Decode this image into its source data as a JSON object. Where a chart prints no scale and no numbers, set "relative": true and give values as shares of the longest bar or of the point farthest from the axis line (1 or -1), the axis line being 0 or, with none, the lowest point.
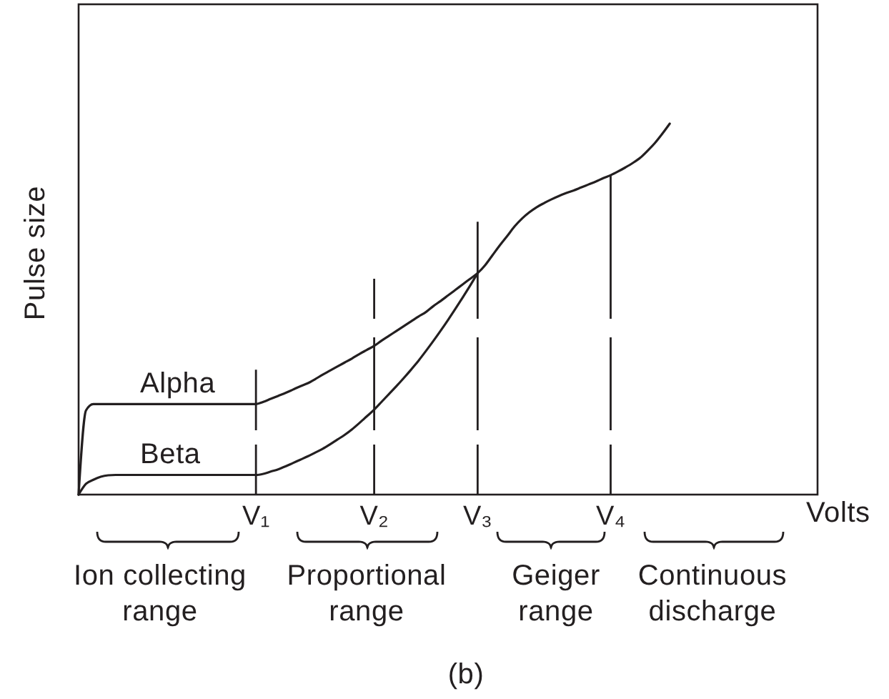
{
  "chart_data": {
    "type": "line",
    "xlabel": "Volts",
    "ylabel": "Pulse size",
    "relative": true,
    "categories": [
      null,
      null,
      null,
      null,
      null,
      null,
      null,
      null,
      null,
      null,
      null,
      null,
      null,
      null,
      null,
      null,
      null,
      null,
      null,
      null,
      null,
      null,
      null,
      null,
      "V₁",
      null,
      null,
      null,
      null,
      null,
      null,
      null,
      null,
      null,
      null,
      null,
      null,
      null,
      null,
      null,
      "V₂",
      null,
      null,
      null,
      null,
      null,
      null,
      null,
      null,
      null,
      null,
      null,
      null,
      null,
      "V₃",
      null,
      null,
      null,
      null,
      null,
      null,
      null,
      null,
      null,
      null,
      null,
      null,
      null,
      null,
      null,
      null,
      null,
      "V₄",
      null,
      null,
      null,
      null,
      null,
      null,
      null,
      null,
      null,
      null,
      null,
      null,
      null,
      null,
      null,
      null,
      null,
      null,
      null,
      null,
      null,
      null,
      null,
      null,
      null,
      null,
      null,
      null
    ],
    "series": [
      {
        "name": "Alpha",
        "color": "#231f20",
        "values": [
          0,
          0.227,
          0.244,
          0.244,
          0.244,
          0.244,
          0.244,
          0.244,
          0.244,
          0.244,
          0.244,
          0.244,
          0.244,
          0.244,
          0.244,
          0.244,
          0.244,
          0.244,
          0.244,
          0.244,
          0.244,
          0.244,
          0.244,
          0.244,
          0.244,
          0.25,
          0.258,
          0.266,
          0.274,
          0.283,
          0.292,
          0.3,
          0.311,
          0.323,
          0.334,
          0.345,
          0.356,
          0.367,
          0.379,
          0.39,
          0.401,
          0.415,
          0.428,
          0.441,
          0.454,
          0.467,
          0.48,
          0.492,
          0.508,
          0.522,
          0.537,
          0.552,
          0.567,
          0.582,
          0.597,
          0.618,
          0.645,
          0.672,
          0.697,
          0.723,
          0.744,
          0.761,
          0.775,
          0.786,
          0.796,
          0.805,
          0.813,
          0.82,
          0.828,
          0.836,
          0.844,
          0.853,
          0.861,
          0.871,
          0.882,
          0.894,
          0.908,
          0.927,
          0.948,
          0.973,
          1,
          null,
          null,
          null,
          null,
          null,
          null,
          null,
          null,
          null,
          null,
          null,
          null,
          null,
          null,
          null,
          null,
          null,
          null,
          null,
          null
        ]
      },
      {
        "name": "Beta",
        "color": "#231f20",
        "values": [
          0,
          0.029,
          0.04,
          0.048,
          0.052,
          0.053,
          0.053,
          0.053,
          0.053,
          0.053,
          0.053,
          0.053,
          0.053,
          0.053,
          0.053,
          0.053,
          0.053,
          0.053,
          0.053,
          0.053,
          0.053,
          0.053,
          0.053,
          0.053,
          0.053,
          0.056,
          0.062,
          0.068,
          0.076,
          0.085,
          0.094,
          0.103,
          0.113,
          0.123,
          0.135,
          0.148,
          0.161,
          0.176,
          0.193,
          0.211,
          0.229,
          0.25,
          0.271,
          0.292,
          0.314,
          0.337,
          0.361,
          0.387,
          0.414,
          0.442,
          0.471,
          0.501,
          0.532,
          0.564,
          0.597,
          null,
          null,
          null,
          null,
          null,
          null,
          null,
          null,
          null,
          null,
          null,
          null,
          null,
          null,
          null,
          null,
          null,
          null,
          null,
          null,
          null,
          null,
          null,
          null,
          null,
          null,
          null,
          null,
          null,
          null,
          null,
          null,
          null,
          null,
          null,
          null,
          null,
          null,
          null,
          null,
          null,
          null,
          null,
          null,
          null,
          null
        ]
      }
    ],
    "ref_lines": [
      {
        "axis": "x",
        "value": "V₁",
        "line_style": "dashed"
      },
      {
        "axis": "x",
        "value": "V₂",
        "line_style": "dashed"
      },
      {
        "axis": "x",
        "value": "V₃",
        "line_style": "dashed"
      },
      {
        "axis": "x",
        "value": "V₄",
        "line_style": "dashed"
      }
    ],
    "annotations": [
      "Ion collecting range",
      "Proportional range",
      "Geiger range",
      "Continuous discharge",
      "(b)"
    ]
  }
}
